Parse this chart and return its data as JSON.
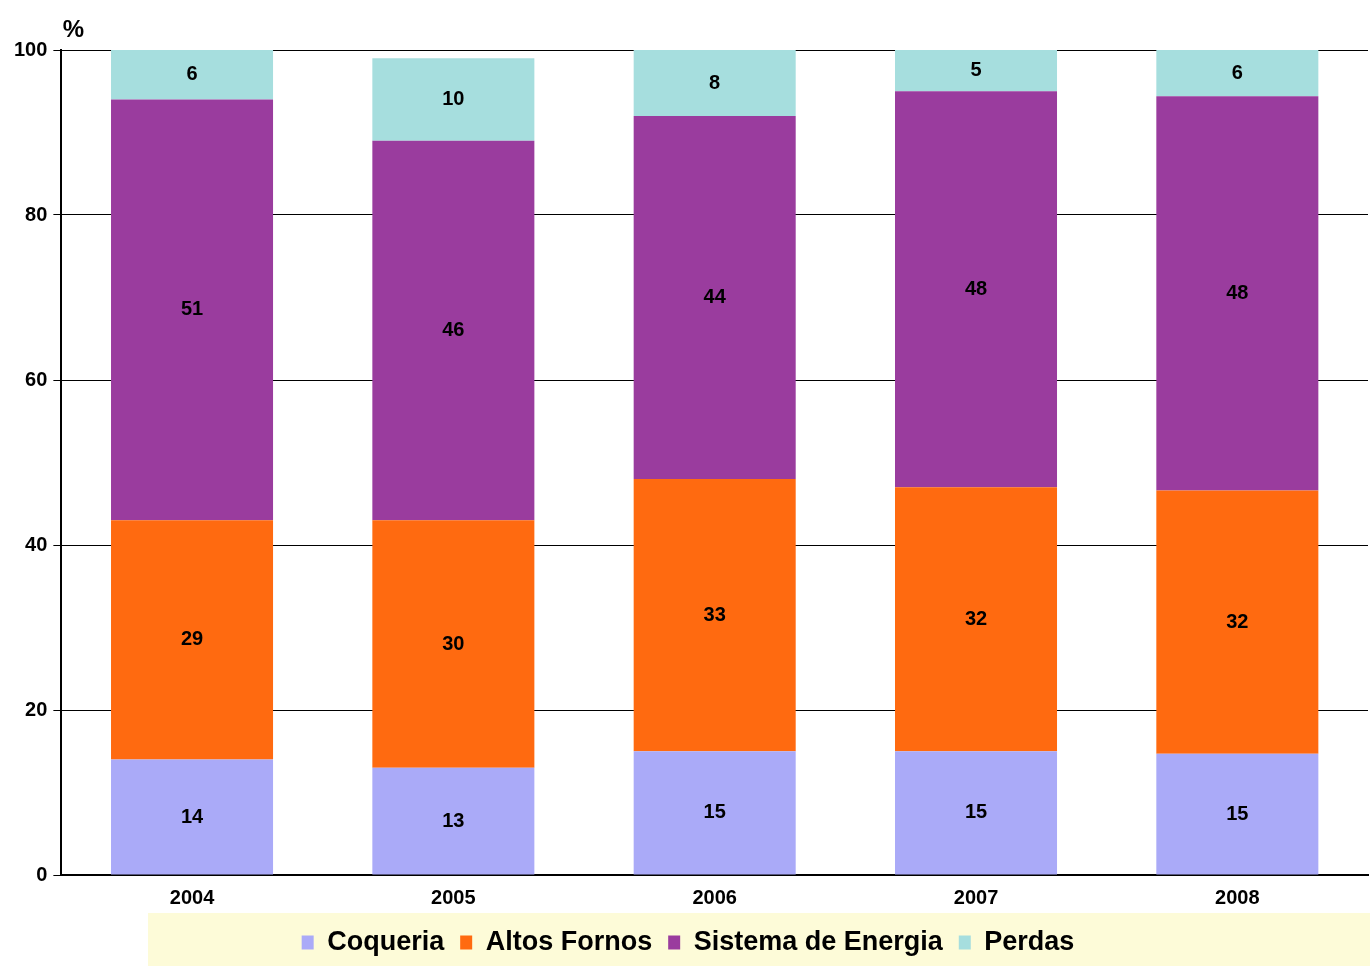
{
  "chart_data": {
    "type": "bar",
    "stacked": true,
    "ylabel": "%",
    "categories": [
      "2004",
      "2005",
      "2006",
      "2007",
      "2008"
    ],
    "series": [
      {
        "name": "Coqueria",
        "color": "#aaaaf8",
        "values": [
          14,
          13,
          15,
          15,
          14.7
        ],
        "value_labels": [
          "14",
          "13",
          "15",
          "15",
          "15"
        ]
      },
      {
        "name": "Altos Fornos",
        "color": "#ff6a10",
        "values": [
          29,
          30,
          33,
          32,
          31.9
        ],
        "value_labels": [
          "29",
          "30",
          "33",
          "32",
          "32"
        ]
      },
      {
        "name": "Sistema de Energia",
        "color": "#9a3c9e",
        "values": [
          51,
          46,
          44,
          48,
          47.8
        ],
        "value_labels": [
          "51",
          "46",
          "44",
          "48",
          "48"
        ]
      },
      {
        "name": "Perdas",
        "color": "#a6dede",
        "values": [
          6,
          10,
          8,
          5,
          5.6
        ],
        "value_labels": [
          "6",
          "10",
          "8",
          "5",
          "6"
        ]
      }
    ],
    "ylim": [
      0,
      100
    ],
    "yticks": [
      0,
      20,
      40,
      60,
      80,
      100
    ],
    "grid": "y",
    "legend": "bottom"
  }
}
